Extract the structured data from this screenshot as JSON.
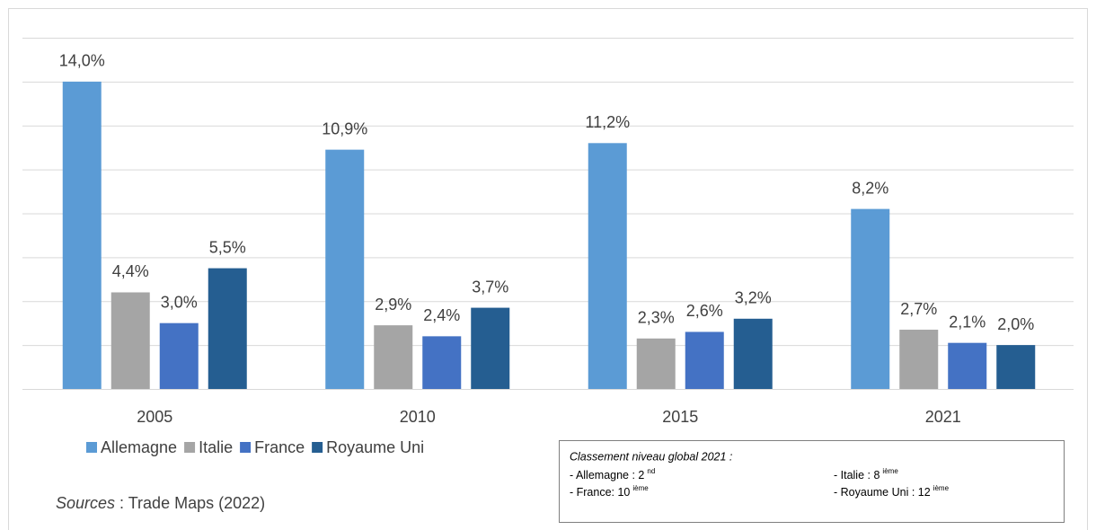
{
  "chart_data": {
    "type": "bar",
    "categories": [
      "2005",
      "2010",
      "2015",
      "2021"
    ],
    "series": [
      {
        "name": "Allemagne",
        "color": "#5b9bd5",
        "values": [
          14.0,
          10.9,
          11.2,
          8.2
        ],
        "value_labels": [
          "14,0%",
          "10,9%",
          "11,2%",
          "8,2%"
        ]
      },
      {
        "name": "Italie",
        "color": "#a5a5a5",
        "values": [
          4.4,
          2.9,
          2.3,
          2.7
        ],
        "value_labels": [
          "4,4%",
          "2,9%",
          "2,3%",
          "2,7%"
        ]
      },
      {
        "name": "France",
        "color": "#4472c4",
        "values": [
          3.0,
          2.4,
          2.6,
          2.1
        ],
        "value_labels": [
          "3,0%",
          "2,4%",
          "2,6%",
          "2,1%"
        ]
      },
      {
        "name": "Royaume Uni",
        "color": "#255e91",
        "values": [
          5.5,
          3.7,
          3.2,
          2.0
        ],
        "value_labels": [
          "5,5%",
          "3,7%",
          "3,2%",
          "2,0%"
        ]
      }
    ],
    "ylim": [
      0,
      16
    ],
    "yticks": [
      0,
      2,
      4,
      6,
      8,
      10,
      12,
      14,
      16
    ],
    "grid": true,
    "legend": "bottom-left",
    "source": {
      "label": "Sources",
      "text": ": Trade Maps (2022)"
    },
    "annotation": {
      "title": "Classement niveau global 2021 :",
      "items": [
        {
          "text": "- Allemagne : 2",
          "sup": "nd"
        },
        {
          "text": "- Italie : 8",
          "sup": "ième"
        },
        {
          "text": "- France: 10",
          "sup": "ième"
        },
        {
          "text": "- Royaume Uni : 12",
          "sup": "ième"
        }
      ]
    }
  }
}
